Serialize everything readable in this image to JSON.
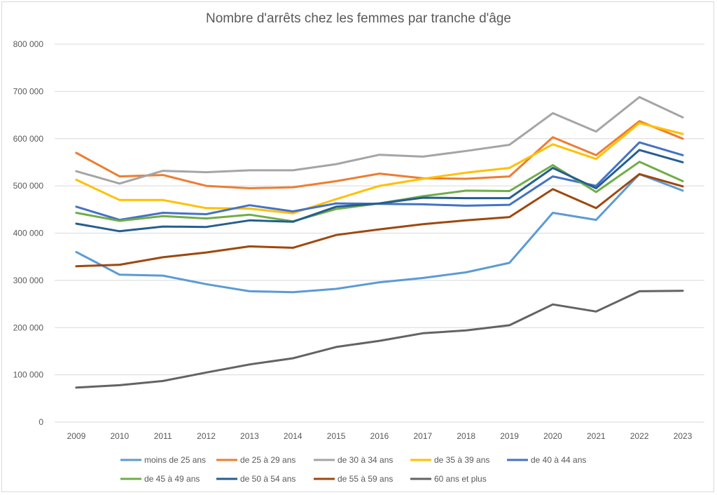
{
  "chart_data": {
    "type": "line",
    "title": "Nombre d'arrêts chez les femmes par tranche d'âge",
    "x": [
      "2009",
      "2010",
      "2011",
      "2012",
      "2013",
      "2014",
      "2015",
      "2016",
      "2017",
      "2018",
      "2019",
      "2020",
      "2021",
      "2022",
      "2023"
    ],
    "ylim": [
      0,
      800000
    ],
    "yticks": [
      0,
      100000,
      200000,
      300000,
      400000,
      500000,
      600000,
      700000,
      800000
    ],
    "ytick_labels": [
      "0",
      "100 000",
      "200 000",
      "300 000",
      "400 000",
      "500 000",
      "600 000",
      "700 000",
      "800 000"
    ],
    "grid": true,
    "legend_position": "bottom",
    "series": [
      {
        "name": "moins de 25 ans",
        "color": "#5B9BD5",
        "values": [
          360000,
          312000,
          310000,
          292000,
          277000,
          275000,
          282000,
          296000,
          305000,
          317000,
          337000,
          443000,
          428000,
          525000,
          490000
        ]
      },
      {
        "name": "de 25 à 29 ans",
        "color": "#ED7D31",
        "values": [
          570000,
          520000,
          523000,
          500000,
          495000,
          497000,
          510000,
          526000,
          516000,
          515000,
          520000,
          603000,
          565000,
          637000,
          600000
        ]
      },
      {
        "name": "de 30 à 34 ans",
        "color": "#A5A5A5",
        "values": [
          531000,
          505000,
          532000,
          529000,
          533000,
          533000,
          546000,
          566000,
          562000,
          574000,
          587000,
          654000,
          615000,
          688000,
          645000
        ]
      },
      {
        "name": "de 35 à 39 ans",
        "color": "#FFC000",
        "values": [
          513000,
          470000,
          470000,
          453000,
          452000,
          442000,
          472000,
          500000,
          515000,
          528000,
          538000,
          588000,
          557000,
          633000,
          610000
        ]
      },
      {
        "name": "de 40 à 44 ans",
        "color": "#4472C4",
        "values": [
          456000,
          428000,
          443000,
          440000,
          459000,
          446000,
          463000,
          462000,
          461000,
          458000,
          460000,
          520000,
          500000,
          592000,
          565000
        ]
      },
      {
        "name": "de 45 à 49 ans",
        "color": "#70AD47",
        "values": [
          443000,
          426000,
          436000,
          431000,
          439000,
          425000,
          451000,
          463000,
          478000,
          490000,
          489000,
          544000,
          487000,
          551000,
          510000
        ]
      },
      {
        "name": "de 50 à 54 ans",
        "color": "#255E91",
        "values": [
          420000,
          404000,
          414000,
          413000,
          427000,
          424000,
          456000,
          463000,
          475000,
          474000,
          474000,
          538000,
          495000,
          576000,
          550000
        ]
      },
      {
        "name": "de 55 à 59 ans",
        "color": "#9E480E",
        "values": [
          330000,
          333000,
          349000,
          359000,
          372000,
          369000,
          396000,
          408000,
          419000,
          427000,
          434000,
          493000,
          453000,
          525000,
          499000
        ]
      },
      {
        "name": "60 ans et plus",
        "color": "#636363",
        "values": [
          73000,
          78000,
          87000,
          105000,
          122000,
          135000,
          159000,
          172000,
          188000,
          194000,
          205000,
          249000,
          234000,
          277000,
          278000
        ]
      }
    ]
  }
}
